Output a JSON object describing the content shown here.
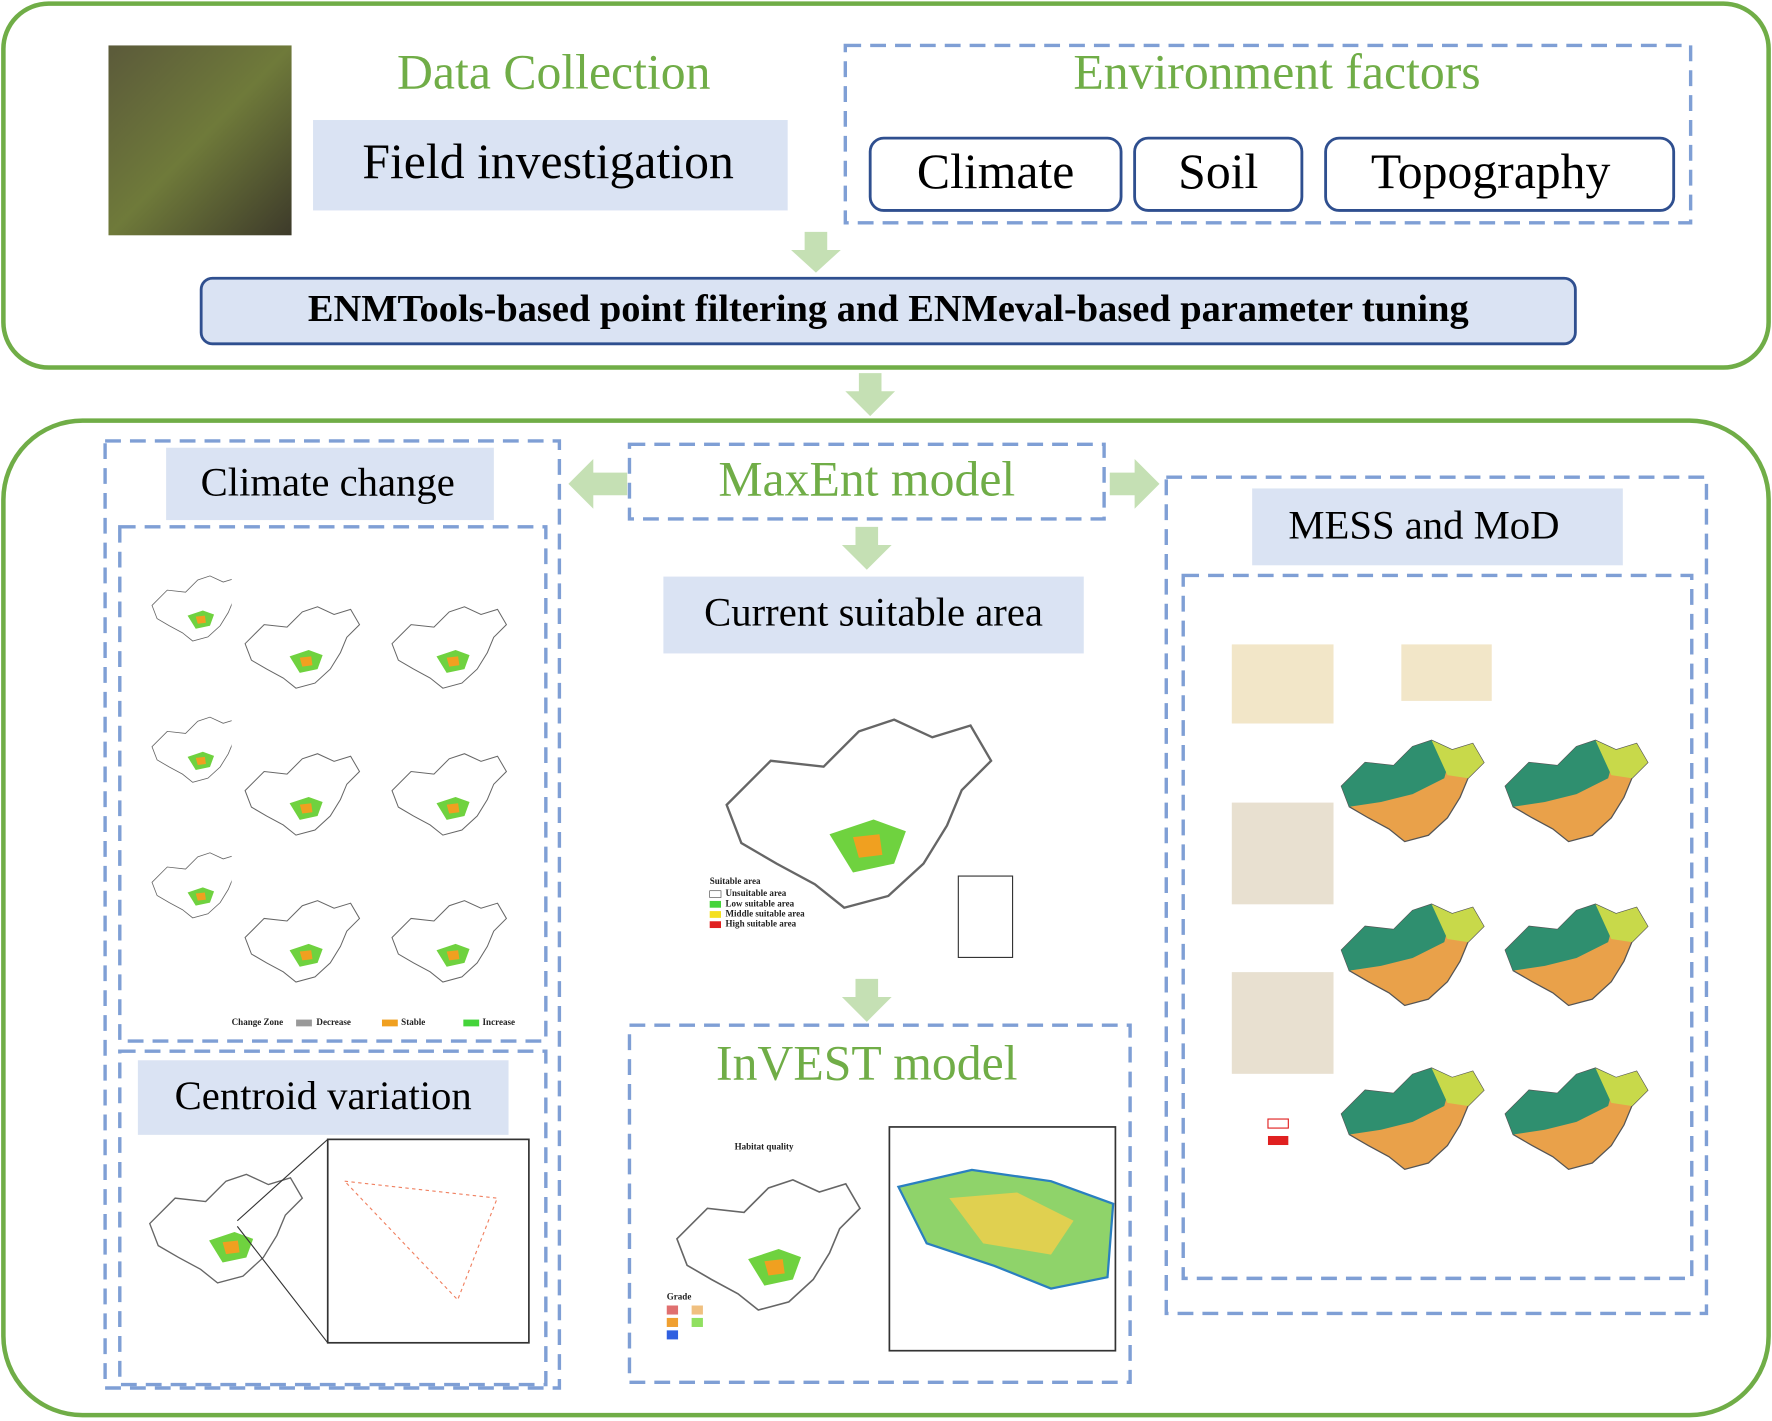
{
  "data_collection": {
    "title": "Data Collection",
    "field": "Field investigation"
  },
  "environment": {
    "title": "Environment factors",
    "factors": [
      "Climate",
      "Soil",
      "Topography"
    ]
  },
  "filtering": "ENMTools-based point filtering and ENMeval-based parameter tuning",
  "maxent": {
    "title": "MaxEnt model"
  },
  "climate_change": {
    "title": "Climate change",
    "legend": {
      "title": "Change Zone",
      "items": [
        "Decrease",
        "Stable",
        "Increase"
      ]
    }
  },
  "centroid": {
    "title": "Centroid variation"
  },
  "mess": {
    "title": "MESS and MoD"
  },
  "current": {
    "title": "Current suitable area",
    "legend": {
      "title": "Suitable area",
      "items": [
        "Unsuitable area",
        "Low suitable area",
        "Middle suitable area",
        "High suitable area"
      ]
    }
  },
  "invest": {
    "title": "InVEST model",
    "map_title": "Habitat quality",
    "grade": "Grade"
  }
}
